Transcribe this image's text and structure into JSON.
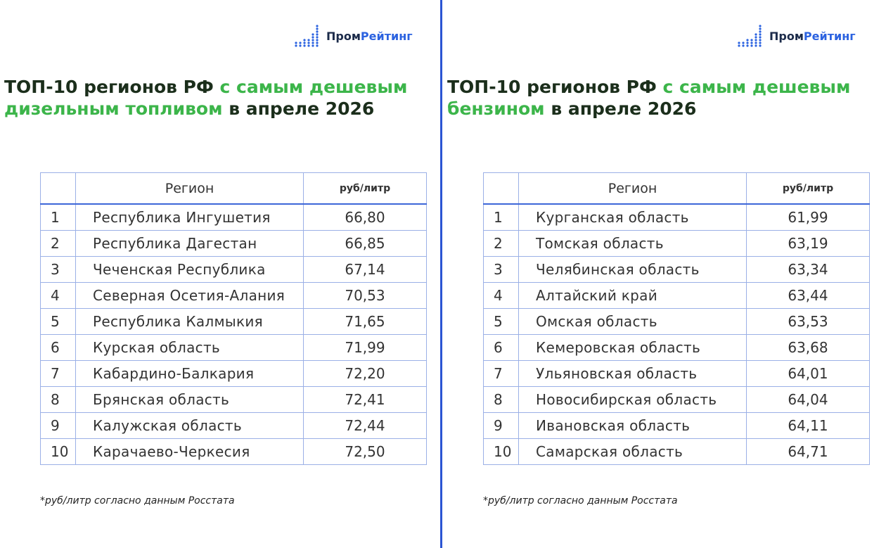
{
  "panels": [
    {
      "logo": {
        "part1": "Пром",
        "part2": "Рейтинг"
      },
      "title": {
        "start": "ТОП-10 регионов РФ",
        "highlight": "с самым дешевым дизельным топливом",
        "end": "в апреле 2026"
      },
      "table": {
        "header": [
          "Регион",
          "руб/литр"
        ],
        "rows": [
          [
            "1",
            "Республика Ингушетия",
            "66,80"
          ],
          [
            "2",
            "Республика Дагестан",
            "66,85"
          ],
          [
            "3",
            "Чеченская Республика",
            "67,14"
          ],
          [
            "4",
            "Северная Осетия-Алания",
            "70,53"
          ],
          [
            "5",
            "Республика Калмыкия",
            "71,65"
          ],
          [
            "6",
            "Курская область",
            "71,99"
          ],
          [
            "7",
            "Кабардино-Балкария",
            "72,20"
          ],
          [
            "8",
            "Брянская область",
            "72,41"
          ],
          [
            "9",
            "Калужская область",
            "72,44"
          ],
          [
            "10",
            "Карачаево-Черкесия",
            "72,50"
          ]
        ]
      },
      "footnote": "*руб/литр согласно данным Росстата"
    },
    {
      "logo": {
        "part1": "Пром",
        "part2": "Рейтинг"
      },
      "title": {
        "start": "ТОП-10 регионов РФ",
        "highlight": "с самым дешевым бензином",
        "end": "в апреле 2026"
      },
      "table": {
        "header": [
          "Регион",
          "руб/литр"
        ],
        "rows": [
          [
            "1",
            "Курганская область",
            "61,99"
          ],
          [
            "2",
            "Томская область",
            "63,19"
          ],
          [
            "3",
            "Челябинская область",
            "63,34"
          ],
          [
            "4",
            "Алтайский край",
            "63,44"
          ],
          [
            "5",
            "Омская область",
            "63,53"
          ],
          [
            "6",
            "Кемеровская область",
            "63,68"
          ],
          [
            "7",
            "Ульяновская область",
            "64,01"
          ],
          [
            "8",
            "Новосибирская область",
            "64,04"
          ],
          [
            "9",
            "Ивановская область",
            "64,11"
          ],
          [
            "10",
            "Самарская область",
            "64,71"
          ]
        ]
      },
      "footnote": "*руб/литр согласно данным Росстата"
    }
  ]
}
